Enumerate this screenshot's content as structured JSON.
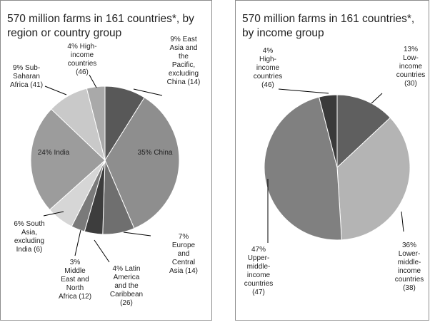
{
  "charts": [
    {
      "title": "570 million farms in 161 countries*, by region or country group",
      "chart_data": {
        "type": "pie",
        "title": "570 million farms in 161 countries*, by region or country group",
        "start_angle_deg": 0,
        "slices": [
          {
            "label": "9% East Asia and the Pacific, excluding China (14)",
            "lines": [
              "9% East",
              "Asia and",
              "the",
              "Pacific,",
              "excluding",
              "China (14)"
            ],
            "value": 9,
            "color": "#585858"
          },
          {
            "label": "35% China",
            "lines": [
              "35% China"
            ],
            "value": 35,
            "color": "#8e8e8e"
          },
          {
            "label": "7% Europe and Central Asia (14)",
            "lines": [
              "7%",
              "Europe",
              "and",
              "Central",
              "Asia (14)"
            ],
            "value": 7,
            "color": "#6f6f6f"
          },
          {
            "label": "4% Latin America and the Caribbean (26)",
            "lines": [
              "4% Latin",
              "America",
              "and the",
              "Caribbean",
              "(26)"
            ],
            "value": 4,
            "color": "#3d3d3d"
          },
          {
            "label": "3% Middle East and North Africa (12)",
            "lines": [
              "3%",
              "Middle",
              "East and",
              "North",
              "Africa (12)"
            ],
            "value": 3,
            "color": "#7a7a7a"
          },
          {
            "label": "6% South Asia, excluding India (6)",
            "lines": [
              "6% South",
              "Asia,",
              "excluding",
              "India (6)"
            ],
            "value": 6,
            "color": "#d6d6d6"
          },
          {
            "label": "24% India",
            "lines": [
              "24% India"
            ],
            "value": 24,
            "color": "#9c9c9c"
          },
          {
            "label": "9% Sub-Saharan Africa (41)",
            "lines": [
              "9% Sub-",
              "Saharan",
              "Africa (41)"
            ],
            "value": 9,
            "color": "#c9c9c9"
          },
          {
            "label": "4% High-income countries (46)",
            "lines": [
              "4% High-",
              "income",
              "countries",
              "(46)"
            ],
            "value": 4,
            "color": "#a9a9a9"
          }
        ]
      }
    },
    {
      "title": "570 million farms in 161 countries*, by income group",
      "chart_data": {
        "type": "pie",
        "title": "570 million farms in 161 countries*, by income group",
        "start_angle_deg": 0,
        "slices": [
          {
            "label": "13% Low-income countries (30)",
            "lines": [
              "13%",
              "Low-",
              "income",
              "countries",
              "(30)"
            ],
            "value": 13,
            "color": "#5f5f5f"
          },
          {
            "label": "36% Lower-middle-income countries (38)",
            "lines": [
              "36%",
              "Lower-",
              "middle-",
              "income",
              "countries",
              "(38)"
            ],
            "value": 36,
            "color": "#b4b4b4"
          },
          {
            "label": "47% Upper-middle-income countries (47)",
            "lines": [
              "47%",
              "Upper-",
              "middle-",
              "income",
              "countries",
              "(47)"
            ],
            "value": 47,
            "color": "#808080"
          },
          {
            "label": "4% High-income countries (46)",
            "lines": [
              "4%",
              "High-",
              "income",
              "countries",
              "(46)"
            ],
            "value": 4,
            "color": "#3a3a3a"
          }
        ]
      }
    }
  ]
}
